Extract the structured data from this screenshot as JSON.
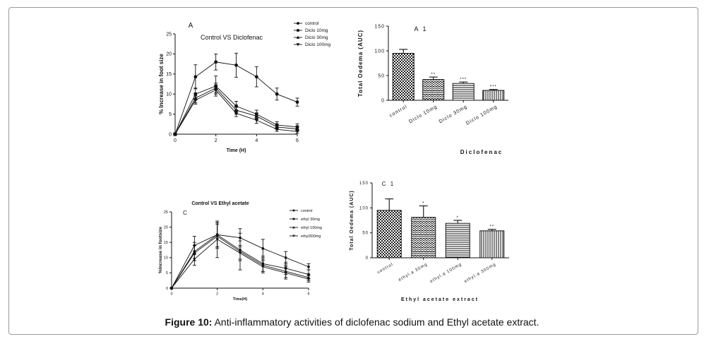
{
  "caption": {
    "label": "Figure 10:",
    "text": "Anti-inflammatory activities of diclofenac sodium and Ethyl acetate extract."
  },
  "chart_data": [
    {
      "id": "A",
      "type": "line",
      "panel_letter": "A",
      "title": "Control VS Diclofenac",
      "xlabel": "Time (H)",
      "ylabel": "% Increase in foot size",
      "xlim": [
        0,
        6
      ],
      "ylim": [
        0,
        25
      ],
      "xticks": [
        0,
        2,
        4,
        6
      ],
      "yticks": [
        0,
        5,
        10,
        15,
        20,
        25
      ],
      "legend": "top-right",
      "x": [
        0,
        1,
        2,
        3,
        4,
        5,
        6
      ],
      "series": [
        {
          "name": "control",
          "marker": "circle",
          "values": [
            0,
            14.3,
            18,
            17.2,
            14.3,
            10,
            8
          ],
          "errors": [
            0,
            3,
            2,
            3,
            2.5,
            1.5,
            1
          ]
        },
        {
          "name": "Diclo 10mg",
          "marker": "square",
          "values": [
            0,
            10,
            12,
            7,
            5,
            2.3,
            1.8
          ],
          "errors": [
            0,
            1.5,
            2.5,
            1.2,
            1,
            0.8,
            0.8
          ]
        },
        {
          "name": "Diclo 30mg",
          "marker": "triangle-up",
          "values": [
            0,
            9,
            11.5,
            6,
            4.5,
            1.8,
            1.3
          ],
          "errors": [
            0,
            1.2,
            1.2,
            1,
            0.8,
            0.6,
            0.6
          ]
        },
        {
          "name": "Diclo 100mg",
          "marker": "triangle-down",
          "values": [
            0,
            8.5,
            11,
            5.2,
            3.5,
            1.2,
            0.7
          ],
          "errors": [
            0,
            1,
            1,
            0.8,
            0.8,
            0.5,
            0.5
          ]
        }
      ]
    },
    {
      "id": "A1",
      "type": "bar",
      "panel_letter": "A 1",
      "ylabel": "Total Oedema (AUC)",
      "xlabel": "Diclofenac",
      "ylim": [
        0,
        150
      ],
      "yticks": [
        0,
        50,
        100,
        150
      ],
      "categories": [
        "control",
        "Diclo 10mg",
        "Diclo 30mg",
        "Diclo 100mg"
      ],
      "values": [
        95,
        42,
        34,
        20
      ],
      "errors": [
        8,
        5,
        3,
        2
      ],
      "significance": [
        "",
        "**",
        "***",
        "***"
      ]
    },
    {
      "id": "C",
      "type": "line",
      "panel_letter": "C",
      "title": "Control VS Ethyl acetate",
      "xlabel": "Time(H)",
      "ylabel": "%Increase in footsize",
      "xlim": [
        0,
        6
      ],
      "ylim": [
        0,
        25
      ],
      "xticks": [
        0,
        2,
        4,
        6
      ],
      "yticks": [
        0,
        5,
        10,
        15,
        20,
        25
      ],
      "legend": "top-right",
      "x": [
        0,
        1,
        2,
        3,
        4,
        5,
        6
      ],
      "series": [
        {
          "name": "control",
          "marker": "circle",
          "values": [
            0,
            14,
            17.5,
            16.5,
            13,
            10,
            7
          ],
          "errors": [
            0,
            3,
            4,
            3,
            3,
            2,
            1
          ]
        },
        {
          "name": "ethyl 30mg",
          "marker": "square",
          "values": [
            0,
            12,
            17.5,
            12.5,
            8,
            6.5,
            4.5
          ],
          "errors": [
            0,
            3,
            4,
            3,
            2.5,
            2,
            1.5
          ]
        },
        {
          "name": "ethyl 100mg",
          "marker": "triangle-up",
          "values": [
            0,
            11.5,
            17,
            12,
            7.5,
            5.5,
            3.5
          ],
          "errors": [
            0,
            2.5,
            4,
            6,
            2,
            2,
            1
          ]
        },
        {
          "name": "ethyl300mg",
          "marker": "triangle-down",
          "values": [
            0,
            9.5,
            16,
            11.5,
            7,
            5,
            3
          ],
          "errors": [
            0,
            2,
            6,
            2.5,
            2,
            2,
            1
          ]
        }
      ]
    },
    {
      "id": "C1",
      "type": "bar",
      "panel_letter": "C 1",
      "ylabel": "Total Oedema (AUC)",
      "xlabel": "Ethyl acetate extract",
      "ylim": [
        0,
        150
      ],
      "yticks": [
        0,
        50,
        100,
        150
      ],
      "categories": [
        "control",
        "ethyl.a 30mg",
        "ethyl.a 100mg",
        "ethyl.a 300mg"
      ],
      "values": [
        95,
        81,
        69,
        54
      ],
      "errors": [
        23,
        23,
        6,
        3
      ],
      "significance": [
        "",
        "*",
        "*",
        "**"
      ]
    }
  ]
}
